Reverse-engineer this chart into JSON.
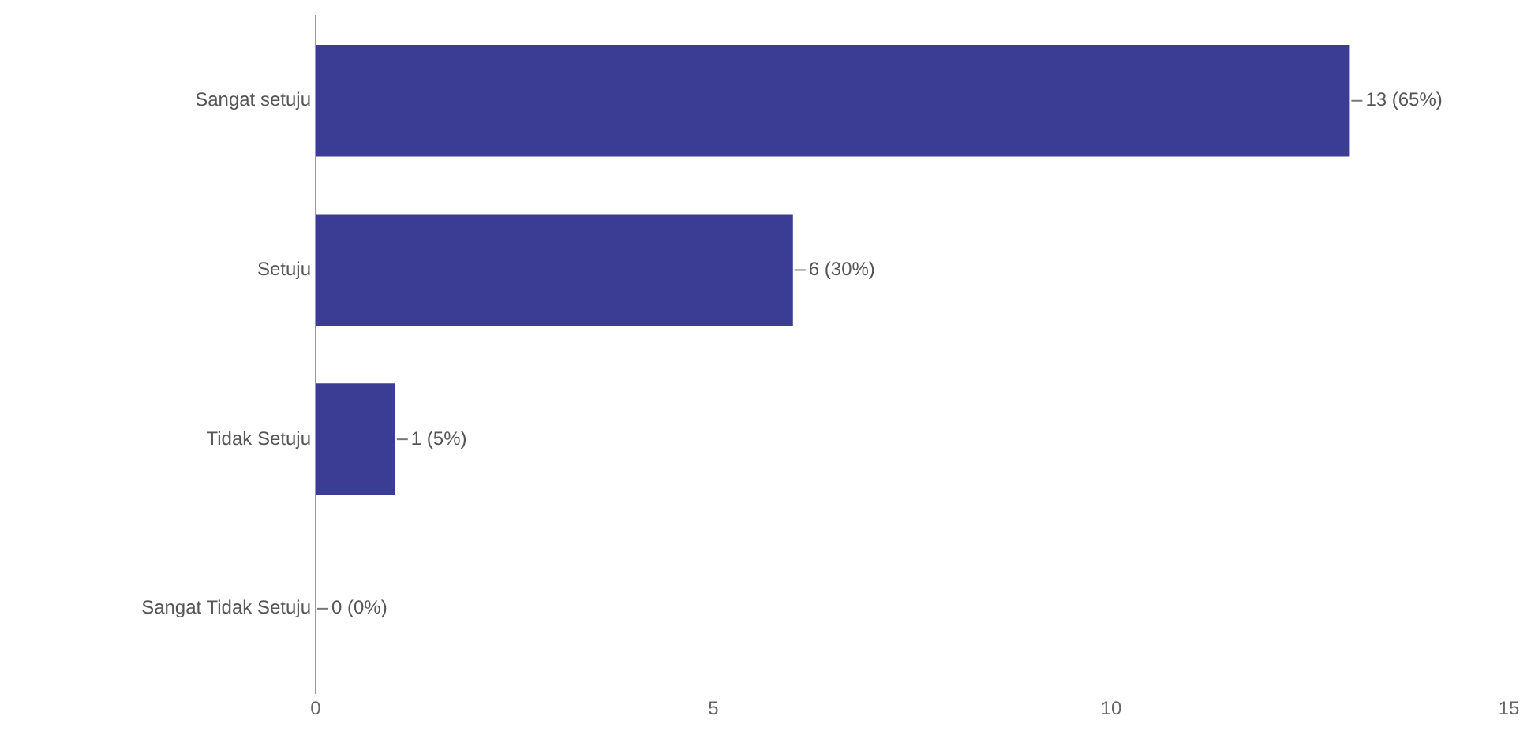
{
  "chart_data": {
    "type": "bar",
    "orientation": "horizontal",
    "categories": [
      "Sangat setuju",
      "Setuju",
      "Tidak Setuju",
      "Sangat Tidak Setuju"
    ],
    "values": [
      13,
      6,
      1,
      0
    ],
    "color": "#3b3d95",
    "value_labels": [
      "13 (65%)",
      "6 (30%)",
      "1 (5%)",
      "0 (0%)"
    ],
    "xlim": [
      0,
      15
    ],
    "xticks": [
      0,
      5,
      10,
      15
    ],
    "grid": false,
    "legend": false
  }
}
